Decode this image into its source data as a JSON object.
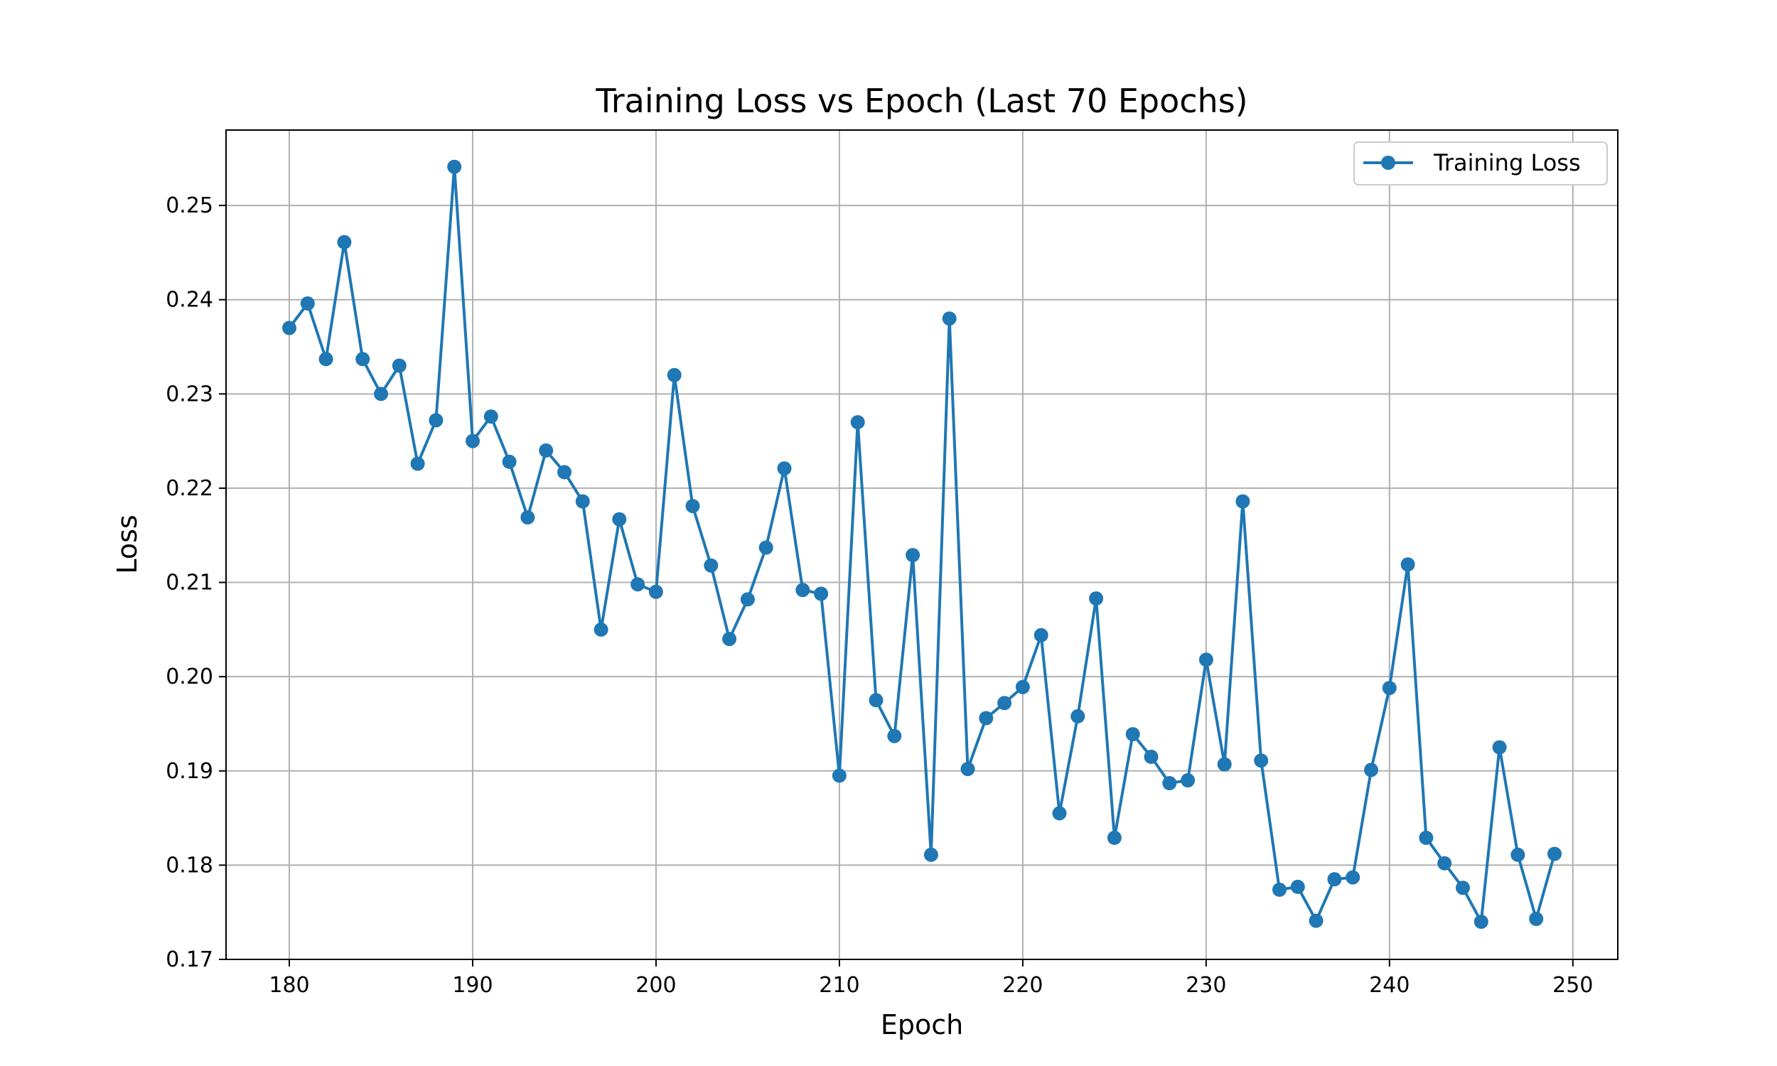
{
  "chart_data": {
    "type": "line",
    "title": "Training Loss vs Epoch (Last 70 Epochs)",
    "xlabel": "Epoch",
    "ylabel": "Loss",
    "xlim": [
      176.55,
      252.45
    ],
    "ylim": [
      0.17,
      0.258
    ],
    "xticks": [
      180,
      190,
      200,
      210,
      220,
      230,
      240,
      250
    ],
    "yticks": [
      0.17,
      0.18,
      0.19,
      0.2,
      0.21,
      0.22,
      0.23,
      0.24,
      0.25
    ],
    "ytick_labels": [
      "0.17",
      "0.18",
      "0.19",
      "0.20",
      "0.21",
      "0.22",
      "0.23",
      "0.24",
      "0.25"
    ],
    "grid": true,
    "legend_position": "top-right",
    "series": [
      {
        "name": "Training Loss",
        "color": "#1f77b4",
        "marker": "circle",
        "x": [
          180,
          181,
          182,
          183,
          184,
          185,
          186,
          187,
          188,
          189,
          190,
          191,
          192,
          193,
          194,
          195,
          196,
          197,
          198,
          199,
          200,
          201,
          202,
          203,
          204,
          205,
          206,
          207,
          208,
          209,
          210,
          211,
          212,
          213,
          214,
          215,
          216,
          217,
          218,
          219,
          220,
          221,
          222,
          223,
          224,
          225,
          226,
          227,
          228,
          229,
          230,
          231,
          232,
          233,
          234,
          235,
          236,
          237,
          238,
          239,
          240,
          241,
          242,
          243,
          244,
          245,
          246,
          247,
          248,
          249
        ],
        "values": [
          0.237,
          0.2396,
          0.2337,
          0.2461,
          0.2337,
          0.23,
          0.233,
          0.2226,
          0.2272,
          0.2541,
          0.225,
          0.2276,
          0.2228,
          0.2169,
          0.224,
          0.2217,
          0.2186,
          0.205,
          0.2167,
          0.2098,
          0.209,
          0.232,
          0.2181,
          0.2118,
          0.204,
          0.2082,
          0.2137,
          0.2221,
          0.2092,
          0.2088,
          0.1895,
          0.227,
          0.1975,
          0.1937,
          0.2129,
          0.1811,
          0.238,
          0.1902,
          0.1956,
          0.1972,
          0.1989,
          0.2044,
          0.1855,
          0.1958,
          0.2083,
          0.1829,
          0.1939,
          0.1915,
          0.1887,
          0.189,
          0.2018,
          0.1907,
          0.2186,
          0.1911,
          0.1774,
          0.1777,
          0.1741,
          0.1785,
          0.1787,
          0.1901,
          0.1988,
          0.2119,
          0.1829,
          0.1802,
          0.1776,
          0.174,
          0.1925,
          0.1811,
          0.1743,
          0.1812
        ]
      }
    ]
  }
}
